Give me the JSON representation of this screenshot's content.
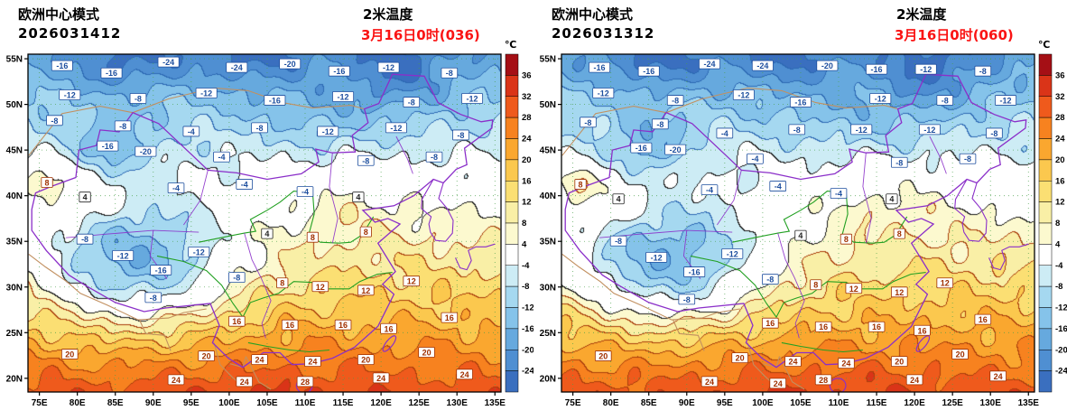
{
  "chart_data": {
    "type": "heatmap",
    "panels": [
      {
        "model_label": "欧洲中心模式",
        "init_time": "2026031412",
        "var_label": "2米温度",
        "valid_label": "3月16日0时(036)",
        "noise_phase": 0,
        "contour_labels": [
          [
            78,
            54.2,
            -16
          ],
          [
            84.5,
            53.4,
            -16
          ],
          [
            92,
            54.6,
            -24
          ],
          [
            101,
            54.0,
            -24
          ],
          [
            108,
            54.4,
            -20
          ],
          [
            114.5,
            53.6,
            -16
          ],
          [
            121,
            54.0,
            -12
          ],
          [
            129,
            53.4,
            -8
          ],
          [
            79,
            51.0,
            -12
          ],
          [
            88,
            50.6,
            -8
          ],
          [
            97,
            51.2,
            -12
          ],
          [
            106,
            50.4,
            -16
          ],
          [
            115,
            50.8,
            -12
          ],
          [
            124,
            50.2,
            -8
          ],
          [
            132,
            50.6,
            -12
          ],
          [
            77,
            48.2,
            -8
          ],
          [
            86,
            47.6,
            -8
          ],
          [
            95,
            47.0,
            -4
          ],
          [
            104,
            47.4,
            -8
          ],
          [
            113,
            47.0,
            -12
          ],
          [
            122,
            47.4,
            -12
          ],
          [
            130.5,
            46.6,
            -8
          ],
          [
            84,
            45.4,
            -16
          ],
          [
            89,
            44.8,
            -20
          ],
          [
            99,
            44.2,
            -4
          ],
          [
            118,
            43.8,
            -8
          ],
          [
            127,
            44.2,
            -8
          ],
          [
            76,
            41.4,
            8
          ],
          [
            81,
            39.8,
            4
          ],
          [
            93,
            40.8,
            -4
          ],
          [
            102,
            41.2,
            -4
          ],
          [
            110,
            40.4,
            -4
          ],
          [
            117,
            39.8,
            4
          ],
          [
            81,
            35.2,
            -8
          ],
          [
            86,
            33.4,
            -12
          ],
          [
            91,
            31.8,
            -16
          ],
          [
            96,
            33.8,
            -12
          ],
          [
            101,
            31.0,
            -8
          ],
          [
            90,
            28.8,
            -8
          ],
          [
            105,
            35.8,
            4
          ],
          [
            111,
            35.4,
            8
          ],
          [
            118,
            36.0,
            8
          ],
          [
            107,
            30.4,
            8
          ],
          [
            112,
            30.0,
            12
          ],
          [
            118,
            29.6,
            12
          ],
          [
            124,
            30.6,
            12
          ],
          [
            101,
            26.2,
            16
          ],
          [
            108,
            25.8,
            16
          ],
          [
            115,
            25.8,
            16
          ],
          [
            121,
            25.4,
            16
          ],
          [
            129,
            26.6,
            16
          ],
          [
            79,
            22.6,
            20
          ],
          [
            97,
            22.4,
            20
          ],
          [
            104,
            22.0,
            24
          ],
          [
            111,
            21.8,
            24
          ],
          [
            118,
            22.0,
            20
          ],
          [
            126,
            22.8,
            20
          ],
          [
            93,
            19.8,
            24
          ],
          [
            102,
            19.6,
            24
          ],
          [
            110,
            19.6,
            28
          ],
          [
            120,
            20.0,
            24
          ],
          [
            131,
            20.4,
            24
          ]
        ]
      },
      {
        "model_label": "欧洲中心模式",
        "init_time": "2026031312",
        "var_label": "2米温度",
        "valid_label": "3月16日0时(060)",
        "noise_phase": 1.15,
        "contour_labels": [
          [
            78.5,
            54.0,
            -16
          ],
          [
            85,
            53.6,
            -16
          ],
          [
            93,
            54.4,
            -24
          ],
          [
            100,
            54.2,
            -24
          ],
          [
            108.5,
            54.2,
            -20
          ],
          [
            115,
            53.8,
            -16
          ],
          [
            121.5,
            53.8,
            -12
          ],
          [
            129,
            53.6,
            -8
          ],
          [
            79,
            51.2,
            -12
          ],
          [
            88.5,
            50.4,
            -8
          ],
          [
            97.5,
            51.0,
            -12
          ],
          [
            105,
            50.2,
            -16
          ],
          [
            115.5,
            50.6,
            -12
          ],
          [
            124,
            50.4,
            -8
          ],
          [
            132,
            50.4,
            -12
          ],
          [
            77,
            48.0,
            -8
          ],
          [
            86.5,
            47.8,
            -8
          ],
          [
            95,
            46.8,
            -4
          ],
          [
            104.5,
            47.2,
            -8
          ],
          [
            113,
            47.2,
            -12
          ],
          [
            122,
            47.2,
            -12
          ],
          [
            130.5,
            46.8,
            -8
          ],
          [
            84,
            45.2,
            -16
          ],
          [
            88.5,
            45.0,
            -20
          ],
          [
            99,
            44.0,
            -4
          ],
          [
            118,
            43.6,
            -8
          ],
          [
            127,
            44.0,
            -8
          ],
          [
            76,
            41.2,
            8
          ],
          [
            81,
            39.6,
            4
          ],
          [
            93,
            40.6,
            -4
          ],
          [
            102,
            41.0,
            -4
          ],
          [
            110,
            40.2,
            -4
          ],
          [
            117,
            39.6,
            4
          ],
          [
            81,
            35.0,
            -8
          ],
          [
            86,
            33.2,
            -12
          ],
          [
            91,
            31.6,
            -16
          ],
          [
            96,
            33.6,
            -12
          ],
          [
            101,
            30.8,
            -8
          ],
          [
            90,
            28.6,
            -8
          ],
          [
            105,
            35.6,
            4
          ],
          [
            111,
            35.2,
            8
          ],
          [
            118,
            35.8,
            8
          ],
          [
            107,
            30.2,
            8
          ],
          [
            112,
            29.8,
            12
          ],
          [
            118,
            29.4,
            12
          ],
          [
            124,
            30.4,
            12
          ],
          [
            101,
            26.0,
            16
          ],
          [
            108,
            25.6,
            16
          ],
          [
            115,
            25.6,
            16
          ],
          [
            121,
            25.2,
            16
          ],
          [
            129,
            26.4,
            16
          ],
          [
            79,
            22.4,
            20
          ],
          [
            97,
            22.2,
            20
          ],
          [
            104,
            21.8,
            24
          ],
          [
            111,
            21.6,
            24
          ],
          [
            118,
            21.8,
            20
          ],
          [
            126,
            22.6,
            20
          ],
          [
            93,
            19.6,
            24
          ],
          [
            102,
            19.4,
            24
          ],
          [
            108,
            19.8,
            28
          ],
          [
            120,
            19.8,
            24
          ],
          [
            131,
            20.2,
            24
          ]
        ]
      }
    ],
    "axes": {
      "lon_ticks": [
        "75E",
        "80E",
        "85E",
        "90E",
        "95E",
        "100E",
        "105E",
        "110E",
        "115E",
        "120E",
        "125E",
        "130E",
        "135E"
      ],
      "lon_tick_values": [
        75,
        80,
        85,
        90,
        95,
        100,
        105,
        110,
        115,
        120,
        125,
        130,
        135
      ],
      "lat_ticks": [
        "55N",
        "50N",
        "45N",
        "40N",
        "35N",
        "30N",
        "25N",
        "20N"
      ],
      "lat_tick_values": [
        55,
        50,
        45,
        40,
        35,
        30,
        25,
        20
      ],
      "lon_range": [
        73.5,
        135.8
      ],
      "lat_range": [
        18.5,
        55.5
      ],
      "grid": "dotted"
    },
    "colorbar": {
      "unit": "℃",
      "levels": [
        -24,
        -20,
        -16,
        -12,
        -8,
        -4,
        4,
        8,
        12,
        16,
        20,
        24,
        28,
        32,
        36
      ],
      "colors_low_to_high": [
        "#3a6fbf",
        "#4f8fd2",
        "#66a9de",
        "#85c3ea",
        "#a5d8f0",
        "#cdecf5",
        "#ffffff",
        "#fcf9cf",
        "#f9efa6",
        "#fbdf73",
        "#fbc84e",
        "#faa72f",
        "#f7821f",
        "#ef5a1c",
        "#da3418",
        "#a50f15"
      ],
      "tick_labels_top_to_bottom": [
        "36",
        "32",
        "28",
        "24",
        "20",
        "16",
        "12",
        "8",
        "4",
        "-4",
        "-8",
        "-12",
        "-16",
        "-20",
        "-24"
      ]
    },
    "field_model": {
      "base": {
        "t_ref": 27,
        "lat_ref": 20,
        "lapse": 1.27
      },
      "anomalies": [
        {
          "name": "tibetan-plateau-cold",
          "lon": 87.5,
          "lat": 32.2,
          "slon": 9.5,
          "slat": 5,
          "amp": -26
        },
        {
          "name": "tarim-basin-warm",
          "lon": 81,
          "lat": 39.5,
          "slon": 4,
          "slat": 2.2,
          "amp": 6
        },
        {
          "name": "fergana-warm",
          "lon": 75.5,
          "lat": 41.5,
          "slon": 2,
          "slat": 1.5,
          "amp": 9
        },
        {
          "name": "altai-cold",
          "lon": 85,
          "lat": 45.5,
          "slon": 3.5,
          "slat": 2.2,
          "amp": -10
        },
        {
          "name": "north-cold-west",
          "lon": 86,
          "lat": 54.5,
          "slon": 5,
          "slat": 2.5,
          "amp": -8
        },
        {
          "name": "north-cold-mid",
          "lon": 103,
          "lat": 55.5,
          "slon": 6,
          "slat": 3,
          "amp": -8
        },
        {
          "name": "north-cold-east",
          "lon": 122,
          "lat": 53.5,
          "slon": 5,
          "slat": 3,
          "amp": -9
        },
        {
          "name": "mongolia-cold",
          "lon": 112,
          "lat": 48.5,
          "slon": 7,
          "slat": 2.5,
          "amp": -4
        },
        {
          "name": "bohai-warm",
          "lon": 117,
          "lat": 39,
          "slon": 5,
          "slat": 2.5,
          "amp": 3
        },
        {
          "name": "south-warm",
          "lon": 105,
          "lat": 18,
          "slon": 20,
          "slat": 4.5,
          "amp": 3
        }
      ],
      "noise": {
        "a1": 1.7,
        "a2": 1.3,
        "a3": 0.8
      }
    },
    "style": {
      "valid_time_color": "#fa1414",
      "coast_color": "#8b2fc9",
      "river_color": "#22a022",
      "foreign_border_color": "#c29060",
      "grid_color": "#4aa04a",
      "axis_text_color": "#000000"
    }
  }
}
